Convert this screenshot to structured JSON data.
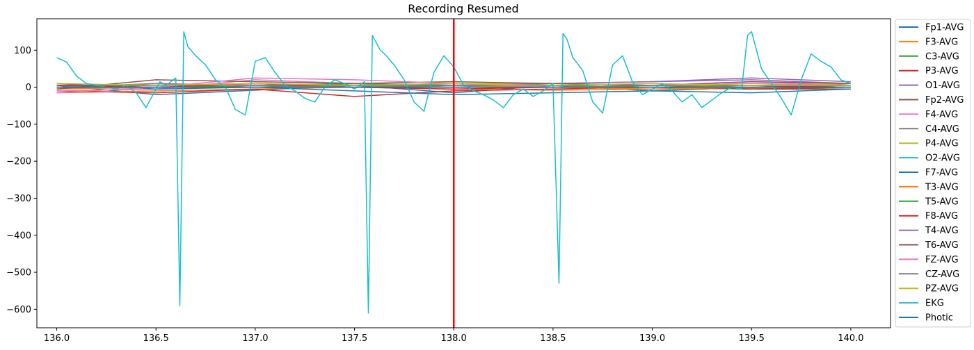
{
  "chart_data": {
    "type": "line",
    "title": "Recording Resumed",
    "xlabel": "",
    "ylabel": "",
    "xlim": [
      135.9,
      140.2
    ],
    "ylim": [
      -650,
      185
    ],
    "xticks": [
      136.0,
      136.5,
      137.0,
      137.5,
      138.0,
      138.5,
      139.0,
      139.5,
      140.0
    ],
    "xtick_labels": [
      "136.0",
      "136.5",
      "137.0",
      "137.5",
      "138.0",
      "138.5",
      "139.0",
      "139.5",
      "140.0"
    ],
    "yticks": [
      100,
      0,
      -100,
      -200,
      -300,
      -400,
      -500,
      -600
    ],
    "ytick_labels": [
      "100",
      "0",
      "−100",
      "−200",
      "−300",
      "−400",
      "−500",
      "−600"
    ],
    "grid": false,
    "legend_position": "outside-right",
    "vline": {
      "x": 138.0,
      "color": "#ff0000"
    },
    "series": [
      {
        "name": "Fp1-AVG",
        "color": "#1f77b4",
        "x": [
          136.0,
          136.5,
          137.0,
          137.5,
          138.0,
          138.5,
          139.0,
          139.5,
          140.0
        ],
        "y": [
          5,
          -20,
          -8,
          5,
          -15,
          5,
          -10,
          0,
          10
        ]
      },
      {
        "name": "F3-AVG",
        "color": "#ff7f0e",
        "x": [
          136.0,
          136.5,
          137.0,
          137.5,
          138.0,
          138.5,
          139.0,
          139.5,
          140.0
        ],
        "y": [
          -15,
          -10,
          -5,
          0,
          -5,
          -8,
          -5,
          -3,
          -5
        ]
      },
      {
        "name": "C3-AVG",
        "color": "#2ca02c",
        "x": [
          136.0,
          136.5,
          137.0,
          137.5,
          138.0,
          138.5,
          139.0,
          139.5,
          140.0
        ],
        "y": [
          0,
          0,
          5,
          10,
          5,
          0,
          0,
          -5,
          0
        ]
      },
      {
        "name": "P3-AVG",
        "color": "#d62728",
        "x": [
          136.0,
          136.5,
          137.0,
          137.5,
          138.0,
          138.5,
          139.0,
          139.5,
          140.0
        ],
        "y": [
          -10,
          -15,
          -5,
          -25,
          -10,
          -5,
          0,
          -5,
          0
        ]
      },
      {
        "name": "O1-AVG",
        "color": "#9467bd",
        "x": [
          136.0,
          136.5,
          137.0,
          137.5,
          138.0,
          138.5,
          139.0,
          139.5,
          140.0
        ],
        "y": [
          5,
          5,
          10,
          5,
          0,
          10,
          15,
          20,
          10
        ]
      },
      {
        "name": "Fp2-AVG",
        "color": "#8c564b",
        "x": [
          136.0,
          136.5,
          137.0,
          137.5,
          138.0,
          138.5,
          139.0,
          139.5,
          140.0
        ],
        "y": [
          -5,
          10,
          0,
          5,
          10,
          5,
          0,
          -5,
          -5
        ]
      },
      {
        "name": "F4-AVG",
        "color": "#e377c2",
        "x": [
          136.0,
          136.5,
          137.0,
          137.5,
          138.0,
          138.5,
          139.0,
          139.5,
          140.0
        ],
        "y": [
          -10,
          -5,
          20,
          10,
          0,
          0,
          5,
          15,
          5
        ]
      },
      {
        "name": "C4-AVG",
        "color": "#7f7f7f",
        "x": [
          136.0,
          136.5,
          137.0,
          137.5,
          138.0,
          138.5,
          139.0,
          139.5,
          140.0
        ],
        "y": [
          0,
          5,
          0,
          5,
          5,
          0,
          5,
          5,
          0
        ]
      },
      {
        "name": "P4-AVG",
        "color": "#bcbd22",
        "x": [
          136.0,
          136.5,
          137.0,
          137.5,
          138.0,
          138.5,
          139.0,
          139.5,
          140.0
        ],
        "y": [
          5,
          5,
          10,
          5,
          10,
          10,
          5,
          5,
          10
        ]
      },
      {
        "name": "O2-AVG",
        "color": "#17becf",
        "x": [
          136.0,
          136.5,
          137.0,
          137.5,
          138.0,
          138.5,
          139.0,
          139.5,
          140.0
        ],
        "y": [
          0,
          0,
          5,
          0,
          0,
          5,
          0,
          0,
          5
        ]
      },
      {
        "name": "F7-AVG",
        "color": "#1f77b4",
        "x": [
          136.0,
          136.5,
          137.0,
          137.5,
          138.0,
          138.5,
          139.0,
          139.5,
          140.0
        ],
        "y": [
          10,
          -5,
          0,
          -10,
          -20,
          -15,
          -10,
          -15,
          -5
        ]
      },
      {
        "name": "T3-AVG",
        "color": "#ff7f0e",
        "x": [
          136.0,
          136.5,
          137.0,
          137.5,
          138.0,
          138.5,
          139.0,
          139.5,
          140.0
        ],
        "y": [
          -5,
          0,
          5,
          0,
          5,
          0,
          -5,
          0,
          5
        ]
      },
      {
        "name": "T5-AVG",
        "color": "#2ca02c",
        "x": [
          136.0,
          136.5,
          137.0,
          137.5,
          138.0,
          138.5,
          139.0,
          139.5,
          140.0
        ],
        "y": [
          0,
          5,
          0,
          10,
          5,
          5,
          0,
          5,
          0
        ]
      },
      {
        "name": "F8-AVG",
        "color": "#d62728",
        "x": [
          136.0,
          136.5,
          137.0,
          137.5,
          138.0,
          138.5,
          139.0,
          139.5,
          140.0
        ],
        "y": [
          5,
          0,
          10,
          0,
          -5,
          0,
          5,
          0,
          5
        ]
      },
      {
        "name": "T4-AVG",
        "color": "#9467bd",
        "x": [
          136.0,
          136.5,
          137.0,
          137.5,
          138.0,
          138.5,
          139.0,
          139.5,
          140.0
        ],
        "y": [
          0,
          10,
          5,
          0,
          5,
          10,
          15,
          25,
          15
        ]
      },
      {
        "name": "T6-AVG",
        "color": "#8c564b",
        "x": [
          136.0,
          136.5,
          137.0,
          137.5,
          138.0,
          138.5,
          139.0,
          139.5,
          140.0
        ],
        "y": [
          -5,
          20,
          15,
          10,
          15,
          10,
          5,
          15,
          10
        ]
      },
      {
        "name": "FZ-AVG",
        "color": "#e377c2",
        "x": [
          136.0,
          136.5,
          137.0,
          137.5,
          138.0,
          138.5,
          139.0,
          139.5,
          140.0
        ],
        "y": [
          -15,
          0,
          25,
          20,
          10,
          0,
          5,
          10,
          5
        ]
      },
      {
        "name": "CZ-AVG",
        "color": "#7f7f7f",
        "x": [
          136.0,
          136.5,
          137.0,
          137.5,
          138.0,
          138.5,
          139.0,
          139.5,
          140.0
        ],
        "y": [
          0,
          0,
          0,
          5,
          0,
          0,
          5,
          0,
          0
        ]
      },
      {
        "name": "PZ-AVG",
        "color": "#bcbd22",
        "x": [
          136.0,
          136.5,
          137.0,
          137.5,
          138.0,
          138.5,
          139.0,
          139.5,
          140.0
        ],
        "y": [
          10,
          5,
          10,
          5,
          10,
          5,
          10,
          5,
          5
        ]
      },
      {
        "name": "EKG",
        "color": "#17becf",
        "x": [
          136.0,
          136.05,
          136.1,
          136.15,
          136.2,
          136.25,
          136.3,
          136.35,
          136.4,
          136.45,
          136.5,
          136.52,
          136.55,
          136.6,
          136.62,
          136.64,
          136.66,
          136.7,
          136.75,
          136.8,
          136.85,
          136.9,
          136.95,
          137.0,
          137.05,
          137.1,
          137.15,
          137.2,
          137.25,
          137.3,
          137.35,
          137.4,
          137.45,
          137.5,
          137.55,
          137.57,
          137.59,
          137.61,
          137.63,
          137.66,
          137.7,
          137.75,
          137.8,
          137.85,
          137.9,
          137.95,
          138.0,
          138.05,
          138.1,
          138.15,
          138.2,
          138.25,
          138.3,
          138.35,
          138.4,
          138.45,
          138.5,
          138.53,
          138.55,
          138.57,
          138.6,
          138.65,
          138.7,
          138.75,
          138.8,
          138.85,
          138.9,
          138.95,
          139.0,
          139.05,
          139.1,
          139.15,
          139.2,
          139.25,
          139.3,
          139.35,
          139.4,
          139.45,
          139.48,
          139.5,
          139.52,
          139.55,
          139.6,
          139.65,
          139.7,
          139.75,
          139.8,
          139.85,
          139.9,
          139.95,
          140.0
        ],
        "y": [
          80,
          68,
          30,
          10,
          5,
          0,
          -5,
          5,
          -15,
          -55,
          -5,
          15,
          5,
          25,
          -590,
          150,
          110,
          85,
          60,
          20,
          0,
          -60,
          -75,
          70,
          80,
          40,
          5,
          -10,
          -30,
          -40,
          0,
          20,
          10,
          -5,
          15,
          -610,
          140,
          120,
          100,
          85,
          60,
          20,
          -40,
          -65,
          40,
          85,
          55,
          5,
          -10,
          -20,
          -35,
          -55,
          -20,
          -5,
          -25,
          -10,
          10,
          -530,
          145,
          130,
          80,
          45,
          -40,
          -70,
          60,
          85,
          15,
          -20,
          -5,
          10,
          -10,
          -40,
          -20,
          -55,
          -35,
          -15,
          0,
          -5,
          140,
          150,
          110,
          50,
          10,
          -30,
          -75,
          20,
          90,
          70,
          55,
          20,
          10
        ]
      },
      {
        "name": "Photic",
        "color": "#1f77b4",
        "x": [
          136.0,
          136.5,
          137.0,
          137.5,
          138.0,
          138.5,
          139.0,
          139.5,
          140.0
        ],
        "y": [
          0,
          0,
          0,
          0,
          0,
          0,
          0,
          0,
          0
        ]
      }
    ]
  }
}
